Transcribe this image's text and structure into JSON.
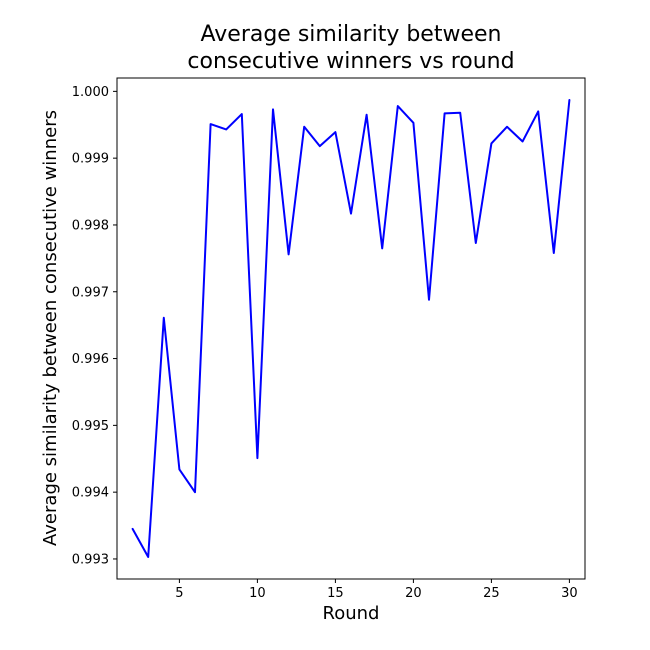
{
  "chart_data": {
    "type": "line",
    "title_lines": [
      "Average similarity between",
      "consecutive winners vs round"
    ],
    "xlabel": "Round",
    "ylabel": "Average similarity between consecutive winners",
    "xlim": [
      1.0,
      31.0
    ],
    "ylim": [
      0.9927,
      1.0002
    ],
    "xticks": [
      5,
      10,
      15,
      20,
      25,
      30
    ],
    "xtick_labels": [
      "5",
      "10",
      "15",
      "20",
      "25",
      "30"
    ],
    "yticks": [
      0.993,
      0.994,
      0.995,
      0.996,
      0.997,
      0.998,
      0.999,
      1.0
    ],
    "ytick_labels": [
      "0.993",
      "0.994",
      "0.995",
      "0.996",
      "0.997",
      "0.998",
      "0.999",
      "1.000"
    ],
    "grid": false,
    "series": [
      {
        "color": "#0000ff",
        "x": [
          2,
          3,
          4,
          5,
          6,
          7,
          8,
          9,
          10,
          11,
          12,
          13,
          14,
          15,
          16,
          17,
          18,
          19,
          20,
          21,
          22,
          23,
          24,
          25,
          26,
          27,
          28,
          29,
          30
        ],
        "y": [
          0.99345,
          0.99303,
          0.99661,
          0.99434,
          0.994,
          0.99951,
          0.99943,
          0.99966,
          0.99451,
          0.99973,
          0.99756,
          0.99947,
          0.99918,
          0.99939,
          0.99817,
          0.99965,
          0.99765,
          0.99978,
          0.99953,
          0.99688,
          0.99967,
          0.99968,
          0.99773,
          0.99922,
          0.99947,
          0.99925,
          0.9997,
          0.99758,
          0.99987
        ]
      }
    ]
  }
}
